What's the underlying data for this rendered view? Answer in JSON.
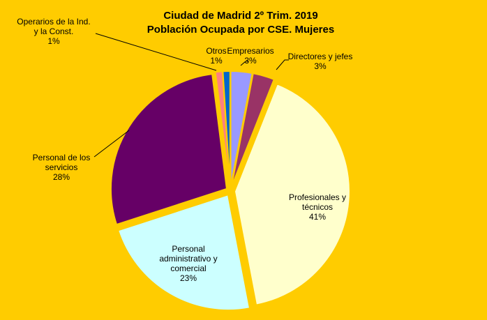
{
  "chart_data": {
    "type": "pie",
    "title": "Ciudad de Madrid 2º Trim. 2019",
    "subtitle": "Población Ocupada por CSE. Mujeres",
    "categories": [
      "Empresarios",
      "Directores y jefes",
      "Profesionales y técnicos",
      "Personal administrativo y comercial",
      "Personal de los servicios",
      "Operarios de la Ind. y la Const.",
      "Otros"
    ],
    "values": [
      3,
      3,
      41,
      23,
      28,
      1,
      1
    ],
    "value_labels": [
      "3%",
      "3%",
      "41%",
      "23%",
      "28%",
      "1%",
      "1%"
    ],
    "colors": [
      "#9999FF",
      "#993366",
      "#FFFFCC",
      "#CCFFFF",
      "#660066",
      "#FF8080",
      "#0066CC"
    ]
  }
}
